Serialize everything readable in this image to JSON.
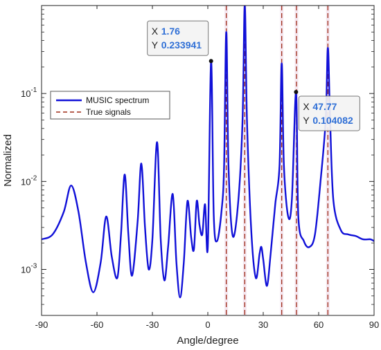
{
  "chart_data": {
    "type": "line",
    "title": "",
    "xlabel": "Angle/degree",
    "ylabel": "Normalized",
    "xlim": [
      -90,
      90
    ],
    "ylim": [
      0.0003,
      1
    ],
    "yscale": "log",
    "grid": false,
    "legend_position": "top-left",
    "x_ticks": [
      "-90",
      "-60",
      "-30",
      "0",
      "30",
      "60",
      "90"
    ],
    "y_ticks": [
      {
        "value": 0.001,
        "base": "10",
        "exp": "-3"
      },
      {
        "value": 0.01,
        "base": "10",
        "exp": "-2"
      },
      {
        "value": 0.1,
        "base": "10",
        "exp": "-1"
      }
    ],
    "series": [
      {
        "name": "MUSIC spectrum",
        "color": "#1010d8",
        "x": [
          -90,
          -84,
          -78,
          -74,
          -70,
          -66,
          -62,
          -58,
          -55,
          -52,
          -49,
          -47,
          -45,
          -43,
          -41,
          -38,
          -36,
          -34,
          -32,
          -30,
          -27.5,
          -25.5,
          -23.5,
          -21.5,
          -19,
          -17,
          -15,
          -13,
          -11,
          -9,
          -7.5,
          -6,
          -4.5,
          -3,
          -1.5,
          0,
          1.76,
          3.2,
          5,
          7.5,
          8.8,
          10,
          11.2,
          13.5,
          16.5,
          18.8,
          20,
          21.2,
          23.5,
          26,
          28,
          29,
          30,
          32,
          34,
          36.5,
          38.8,
          40,
          41.2,
          43.5,
          45.5,
          47.77,
          49,
          52,
          55,
          58,
          61,
          63.8,
          65,
          66.2,
          68,
          72,
          76,
          80,
          84,
          88,
          90
        ],
        "values": [
          0.0022,
          0.0025,
          0.0045,
          0.009,
          0.0045,
          0.0012,
          0.00055,
          0.0012,
          0.004,
          0.0014,
          0.0008,
          0.0025,
          0.012,
          0.0025,
          0.00085,
          0.0035,
          0.016,
          0.003,
          0.001,
          0.0022,
          0.028,
          0.0022,
          0.00075,
          0.0018,
          0.0072,
          0.0012,
          0.00048,
          0.0012,
          0.006,
          0.0023,
          0.0017,
          0.006,
          0.0032,
          0.0025,
          0.0055,
          0.0018,
          0.233941,
          0.0042,
          0.0021,
          0.0048,
          0.015,
          0.5,
          0.015,
          0.0024,
          0.006,
          0.05,
          1.0,
          0.05,
          0.0028,
          0.0008,
          0.0015,
          0.0018,
          0.0013,
          0.00065,
          0.0015,
          0.0055,
          0.015,
          0.22,
          0.015,
          0.004,
          0.0062,
          0.104082,
          0.004,
          0.0021,
          0.0018,
          0.0025,
          0.01,
          0.05,
          0.33,
          0.05,
          0.006,
          0.0028,
          0.0025,
          0.0024,
          0.0022,
          0.0022,
          0.0021
        ]
      },
      {
        "name": "True signals",
        "color": "#9e2a16",
        "style": "dashed",
        "x_positions": [
          10,
          20,
          40,
          48,
          65
        ]
      }
    ],
    "datatips": [
      {
        "x": 1.76,
        "y": 0.233941,
        "x_key": "X",
        "y_key": "Y",
        "x_text": "1.76",
        "y_text": "0.233941"
      },
      {
        "x": 47.77,
        "y": 0.104082,
        "x_key": "X",
        "y_key": "Y",
        "x_text": "47.77",
        "y_text": "0.104082"
      }
    ]
  }
}
